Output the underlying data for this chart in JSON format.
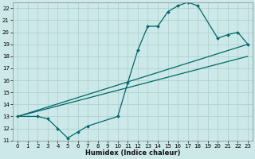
{
  "xlabel": "Humidex (Indice chaleur)",
  "background_color": "#cce8e8",
  "grid_color": "#aacece",
  "line_color": "#006868",
  "xlim": [
    -0.5,
    23.5
  ],
  "ylim": [
    11,
    22.5
  ],
  "yticks": [
    11,
    12,
    13,
    14,
    15,
    16,
    17,
    18,
    19,
    20,
    21,
    22
  ],
  "xticks": [
    0,
    1,
    2,
    3,
    4,
    5,
    6,
    7,
    8,
    9,
    10,
    11,
    12,
    13,
    14,
    15,
    16,
    17,
    18,
    19,
    20,
    21,
    22,
    23
  ],
  "series": [
    {
      "x": [
        0,
        2,
        3,
        4,
        5,
        6,
        7,
        10,
        11,
        12,
        13,
        14,
        15,
        16,
        17,
        18,
        20,
        21,
        22,
        23
      ],
      "y": [
        13,
        13,
        12.8,
        12,
        11.2,
        11.7,
        12.2,
        13.0,
        15.8,
        18.5,
        20.5,
        20.5,
        21.7,
        22.2,
        22.5,
        22.2,
        19.5,
        19.8,
        20.0,
        19.0
      ]
    },
    {
      "x": [
        0,
        23
      ],
      "y": [
        13,
        19
      ]
    },
    {
      "x": [
        0,
        23
      ],
      "y": [
        13,
        18
      ]
    }
  ]
}
